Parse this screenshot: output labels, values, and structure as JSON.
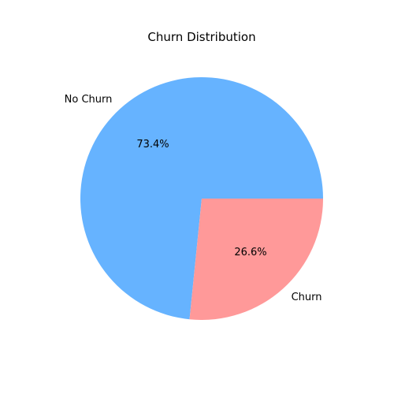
{
  "chart_data": {
    "type": "pie",
    "title": "Churn Distribution",
    "start_angle_deg": 0,
    "direction": "counterclockwise",
    "slices": [
      {
        "label": "No Churn",
        "value": 73.4,
        "pct_label": "73.4%",
        "color": "#66b3ff"
      },
      {
        "label": "Churn",
        "value": 26.6,
        "pct_label": "26.6%",
        "color": "#ff9999"
      }
    ]
  }
}
